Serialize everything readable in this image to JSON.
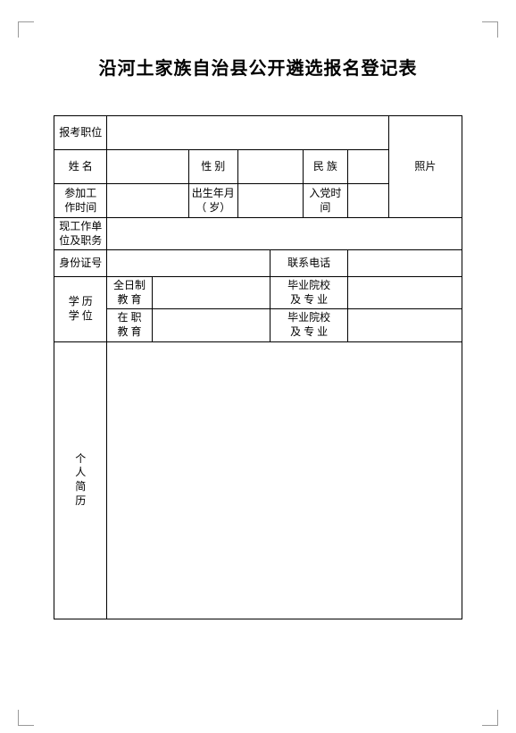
{
  "title": "沿河土家族自治县公开遴选报名登记表",
  "labels": {
    "position": "报考职位",
    "name": "姓 名",
    "gender": "性 别",
    "ethnicity": "民 族",
    "work_time": "参加工\n作时间",
    "birth": "出生年月\n（ 岁）",
    "party_time": "入党时间",
    "current_unit": "现工作单\n位及职务",
    "id_number": "身份证号",
    "phone": "联系电话",
    "education": "学 历\n学 位",
    "fulltime_edu": "全日制\n教 育",
    "grad_school1": "毕业院校\n及 专 业",
    "onjob_edu": "在 职\n教 育",
    "grad_school2": "毕业院校\n及 专 业",
    "photo": "照片",
    "resume": "个\n人\n简\n历"
  },
  "values": {
    "position": "",
    "name": "",
    "gender": "",
    "ethnicity": "",
    "work_time": "",
    "birth": "",
    "party_time": "",
    "current_unit": "",
    "id_number": "",
    "phone": "",
    "fulltime_edu": "",
    "grad_school1": "",
    "onjob_edu": "",
    "grad_school2": "",
    "resume": ""
  }
}
